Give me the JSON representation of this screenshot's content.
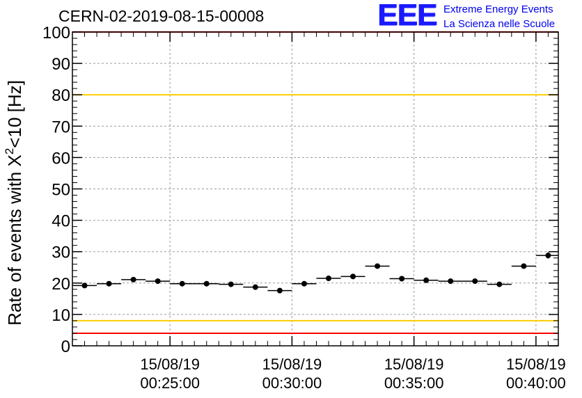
{
  "header": {
    "run_title": "CERN-02-2019-08-15-00008",
    "logo_letters": "EEE",
    "logo_line1": "Extreme Energy Events",
    "logo_line2": "La Scienza nelle Scuole"
  },
  "colors": {
    "points": "#000000",
    "red_limit": "#ff0000",
    "yellow_limit": "#ffcc00",
    "grid": "#9a9a9a",
    "logo": "#1a1aff"
  },
  "chart_data": {
    "type": "scatter",
    "title": "CERN-02-2019-08-15-00008",
    "ylabel": "Rate of events with X²<10 [Hz]",
    "ylabel_parts": {
      "pre": "Rate of events with X",
      "sup": "2",
      "post": "<10 [Hz]"
    },
    "ylim": [
      0,
      100
    ],
    "xlim": [
      "00:21:00",
      "00:40:55"
    ],
    "grid": true,
    "y_ticks": [
      "0",
      "10",
      "20",
      "30",
      "40",
      "50",
      "60",
      "70",
      "80",
      "90",
      "100"
    ],
    "x_ticks": [
      {
        "time": "00:25:00",
        "date": "15/08/19",
        "label": "00:25:00"
      },
      {
        "time": "00:30:00",
        "date": "15/08/19",
        "label": "00:30:00"
      },
      {
        "time": "00:35:00",
        "date": "15/08/19",
        "label": "00:35:00"
      },
      {
        "time": "00:40:00",
        "date": "15/08/19",
        "label": "00:40:00"
      }
    ],
    "reference_lines": [
      {
        "y": 100,
        "color": "red"
      },
      {
        "y": 80,
        "color": "yellow"
      },
      {
        "y": 8,
        "color": "yellow"
      },
      {
        "y": 4,
        "color": "red"
      }
    ],
    "points": [
      {
        "x": "00:21:30",
        "y": 19.2,
        "err": 0.5
      },
      {
        "x": "00:22:30",
        "y": 19.8,
        "err": 0.5
      },
      {
        "x": "00:23:30",
        "y": 21.1,
        "err": 0.5
      },
      {
        "x": "00:24:30",
        "y": 20.6,
        "err": 0.5
      },
      {
        "x": "00:25:30",
        "y": 19.8,
        "err": 0.5
      },
      {
        "x": "00:26:30",
        "y": 19.8,
        "err": 0.5
      },
      {
        "x": "00:27:30",
        "y": 19.6,
        "err": 0.5
      },
      {
        "x": "00:28:30",
        "y": 18.7,
        "err": 0.5
      },
      {
        "x": "00:29:30",
        "y": 17.6,
        "err": 0.5
      },
      {
        "x": "00:30:30",
        "y": 19.8,
        "err": 0.5
      },
      {
        "x": "00:31:30",
        "y": 21.5,
        "err": 0.5
      },
      {
        "x": "00:32:30",
        "y": 22.1,
        "err": 0.5
      },
      {
        "x": "00:33:30",
        "y": 25.4,
        "err": 0.5
      },
      {
        "x": "00:34:30",
        "y": 21.4,
        "err": 0.5
      },
      {
        "x": "00:35:30",
        "y": 20.9,
        "err": 0.5
      },
      {
        "x": "00:36:30",
        "y": 20.6,
        "err": 0.5
      },
      {
        "x": "00:37:30",
        "y": 20.6,
        "err": 0.5
      },
      {
        "x": "00:38:30",
        "y": 19.6,
        "err": 0.5
      },
      {
        "x": "00:39:30",
        "y": 25.4,
        "err": 0.5
      },
      {
        "x": "00:40:30",
        "y": 28.8,
        "err": 1.0
      }
    ]
  }
}
